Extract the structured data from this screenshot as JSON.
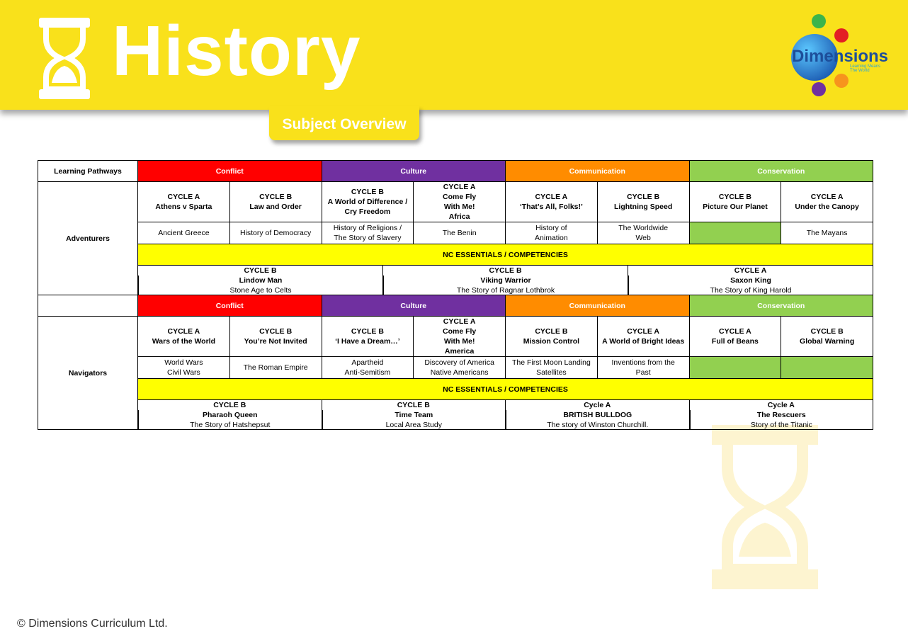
{
  "header": {
    "title": "History",
    "subtitle": "Subject Overview",
    "logo": "Dimensions",
    "logo_tagline": "Learning Means The World"
  },
  "table": {
    "corner": "Learning Pathways",
    "colors": [
      "#ff0000",
      "#7030a0",
      "#ff8c00",
      "#92d050"
    ],
    "essentials_color": "#ffff00",
    "groups": [
      {
        "name": "Adventurers",
        "pathways": [
          "Conflict",
          "Culture",
          "Communication",
          "Conservation"
        ],
        "units": [
          {
            "cycle": "CYCLE A",
            "title": "Athens v Sparta"
          },
          {
            "cycle": "CYCLE B",
            "title": "Law and Order"
          },
          {
            "cycle": "CYCLE B",
            "title": "A World of Difference / Cry Freedom"
          },
          {
            "cycle": "CYCLE A",
            "title": "Come Fly\nWith Me!\nAfrica"
          },
          {
            "cycle": "CYCLE A",
            "title": "‘That’s All, Folks!’"
          },
          {
            "cycle": "CYCLE B",
            "title": "Lightning Speed"
          },
          {
            "cycle": "CYCLE B",
            "title": "Picture Our Planet"
          },
          {
            "cycle": "CYCLE A",
            "title": "Under the Canopy"
          }
        ],
        "topics": [
          "Ancient Greece",
          "History of Democracy",
          "History of Religions /\nThe Story of Slavery",
          "The Benin",
          "History of\nAnimation",
          "The Worldwide\nWeb",
          null,
          "The Mayans"
        ],
        "essentials": "NC ESSENTIALS / COMPETENCIES",
        "projects": [
          {
            "cycle": "CYCLE B",
            "title": "Lindow Man",
            "subtitle": "Stone Age to Celts"
          },
          {
            "cycle": "CYCLE B",
            "title": "Viking Warrior",
            "subtitle": "The Story of Ragnar Lothbrok"
          },
          {
            "cycle": "CYCLE A",
            "title": "Saxon King",
            "subtitle": "The Story of King Harold"
          }
        ]
      },
      {
        "name": "Navigators",
        "pathways": [
          "Conflict",
          "Culture",
          "Communication",
          "Conservation"
        ],
        "units": [
          {
            "cycle": "CYCLE A",
            "title": "Wars of the World"
          },
          {
            "cycle": "CYCLE B",
            "title": "You’re Not Invited"
          },
          {
            "cycle": "CYCLE B",
            "title": "‘I Have a Dream…’"
          },
          {
            "cycle": "CYCLE A",
            "title": "Come Fly\nWith Me!\nAmerica"
          },
          {
            "cycle": "CYCLE B",
            "title": "Mission Control"
          },
          {
            "cycle": "CYCLE A",
            "title": "A World of Bright Ideas"
          },
          {
            "cycle": "CYCLE A",
            "title": "Full of Beans"
          },
          {
            "cycle": "CYCLE B",
            "title": "Global Warning"
          }
        ],
        "topics": [
          "World Wars\nCivil Wars",
          "The Roman Empire",
          "Apartheid\nAnti-Semitism",
          "Discovery of America\nNative Americans",
          "The First Moon Landing\nSatellites",
          "Inventions from the\nPast",
          null,
          null
        ],
        "essentials": "NC ESSENTIALS / COMPETENCIES",
        "projects": [
          {
            "cycle": "CYCLE B",
            "title": "Pharaoh Queen",
            "subtitle": "The Story of Hatshepsut"
          },
          {
            "cycle": "CYCLE B",
            "title": "Time Team",
            "subtitle": "Local Area Study"
          },
          {
            "cycle": "Cycle A",
            "title": "BRITISH BULLDOG",
            "subtitle": "The story of Winston Churchill."
          },
          {
            "cycle": "Cycle A",
            "title": "The Rescuers",
            "subtitle": "Story of the Titanic"
          }
        ]
      }
    ]
  },
  "footer": "© Dimensions Curriculum Ltd."
}
